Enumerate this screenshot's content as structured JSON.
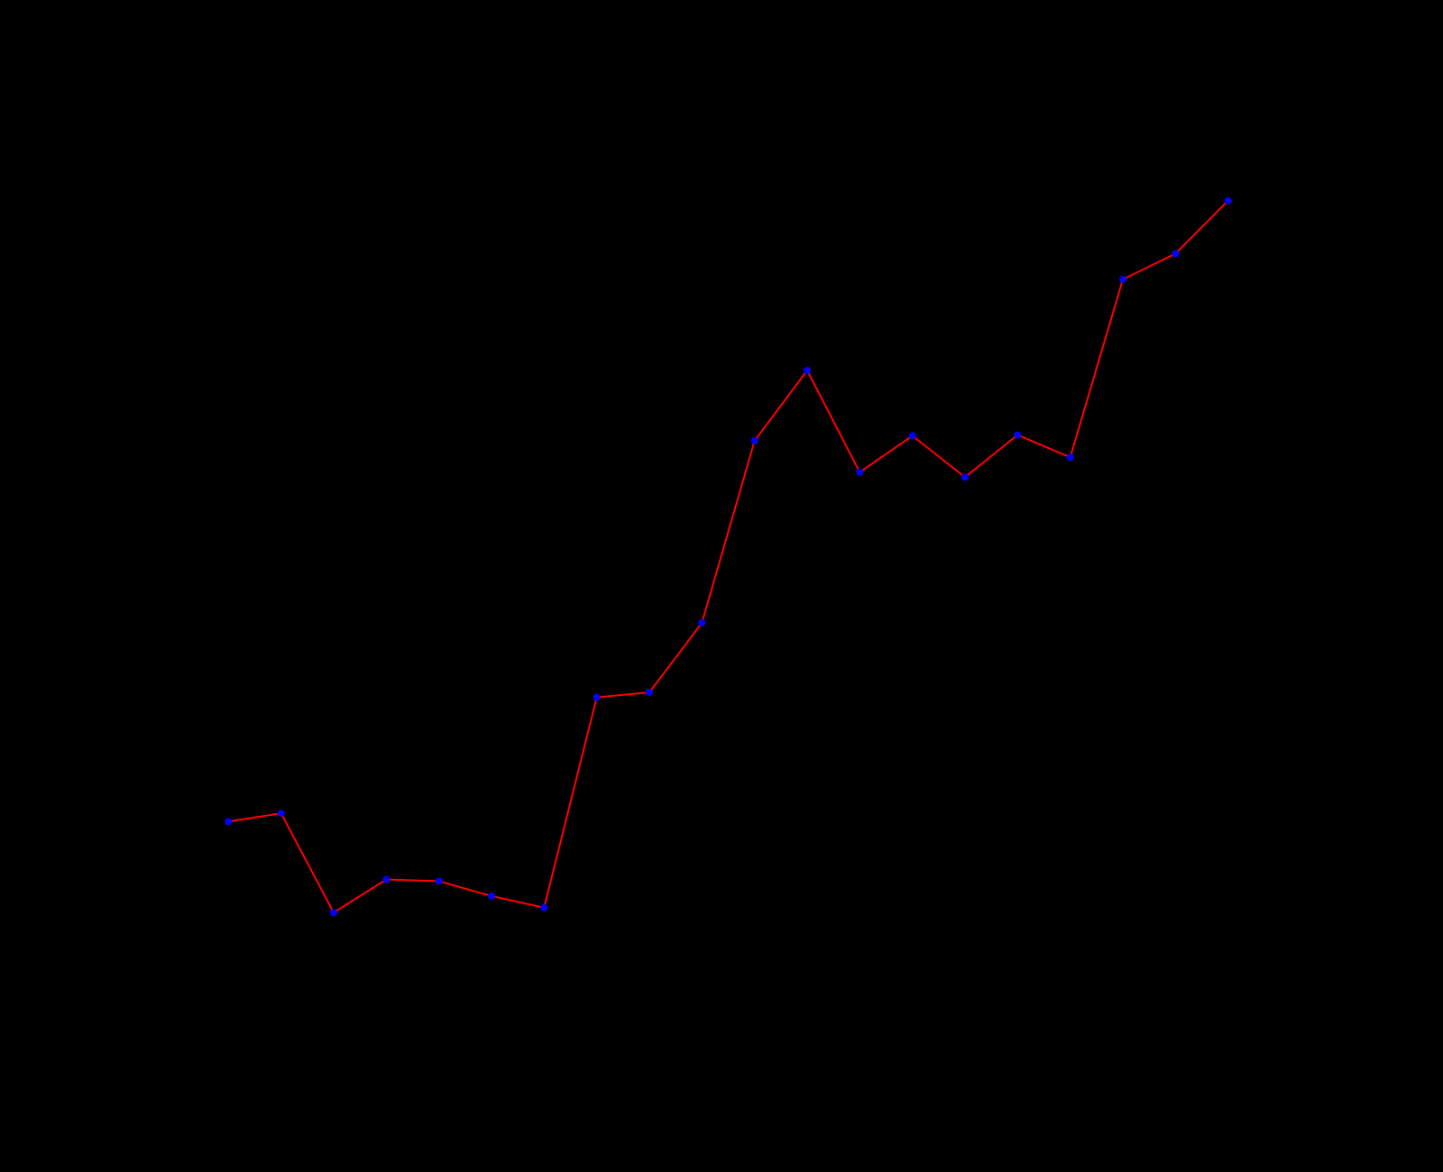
{
  "chart_data": {
    "type": "line",
    "x": [
      1,
      2,
      3,
      4,
      5,
      6,
      7,
      8,
      9,
      10,
      11,
      12,
      13,
      14,
      15,
      16,
      17,
      18,
      19,
      20
    ],
    "series": [
      {
        "values": [
          6.6,
          6.7,
          5.5,
          5.9,
          5.88,
          5.7,
          5.56,
          8.1,
          8.16,
          9.0,
          11.2,
          12.05,
          10.82,
          11.26,
          10.76,
          11.27,
          11.0,
          13.15,
          13.46,
          14.1
        ],
        "line_color": "#ff0000",
        "marker_color": "#0000ff"
      }
    ],
    "xlim": [
      0,
      21
    ],
    "ylim": [
      4,
      15
    ],
    "grid": false,
    "background": "#000000"
  }
}
